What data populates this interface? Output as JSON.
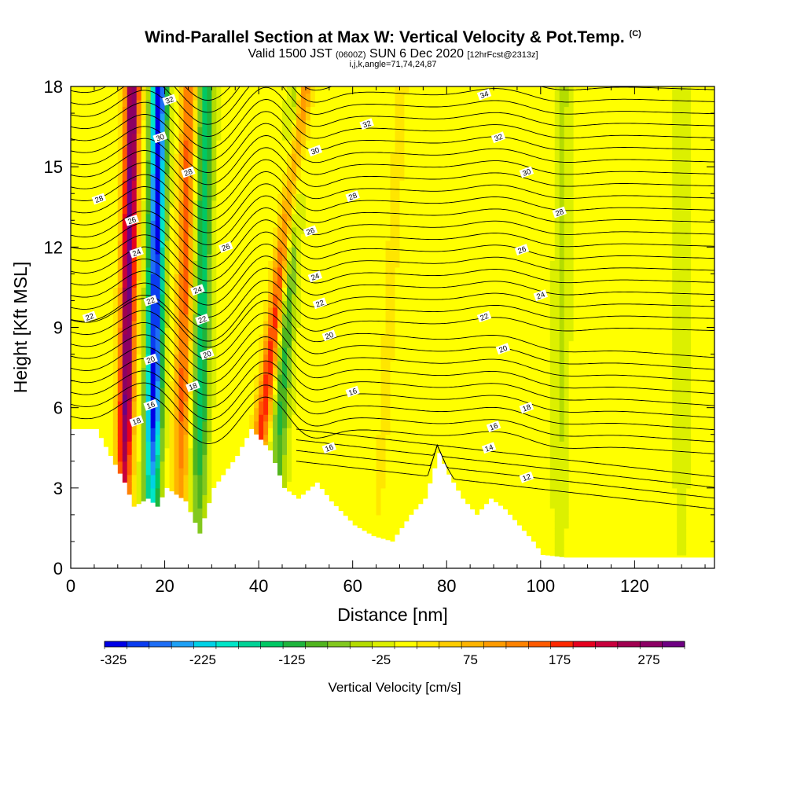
{
  "titles": {
    "main": "Wind-Parallel Section at Max W: Vertical Velocity & Pot.Temp.",
    "copyright": "(C)",
    "valid_prefix": "Valid 1500 JST",
    "valid_z": "(0600Z)",
    "valid_date": "SUN 6 Dec 2020",
    "valid_fcst": "[12hrFcst@2313z]",
    "indices": "i,j,k,angle=71,74,24,87"
  },
  "chart_data": {
    "type": "heatmap",
    "xlabel": "Distance [nm]",
    "ylabel": "Height [Kft MSL]",
    "xlim": [
      0,
      137
    ],
    "ylim": [
      0,
      18
    ],
    "x_ticks": [
      0,
      20,
      40,
      60,
      80,
      100,
      120
    ],
    "y_ticks": [
      0,
      3,
      6,
      9,
      12,
      15,
      18
    ],
    "colorbar": {
      "label": "Vertical Velocity [cm/s]",
      "min": -335,
      "max": 315,
      "step": 25,
      "tick_values": [
        -325,
        -225,
        -125,
        -25,
        75,
        175,
        275
      ],
      "tick_labels": [
        "-325",
        "-225",
        "-125",
        "-25",
        "75",
        "175",
        "275"
      ],
      "colors": [
        "#0000e6",
        "#0a3cf0",
        "#1e6ef5",
        "#1ea0f5",
        "#00d2e6",
        "#00e6c8",
        "#00d296",
        "#00c864",
        "#1eb43c",
        "#50b41e",
        "#82c81e",
        "#b4dc00",
        "#dcf000",
        "#ffff00",
        "#ffe600",
        "#ffcd00",
        "#ffb400",
        "#ff9b00",
        "#ff8200",
        "#ff5a00",
        "#ff2800",
        "#e6001e",
        "#c8003c",
        "#a00050",
        "#8c0064",
        "#6e0082"
      ]
    },
    "updrafts": [
      {
        "x_base": 11,
        "tilt_nm_per_kft": 0.12,
        "peak_cm_s": 300
      },
      {
        "x_base": 23,
        "tilt_nm_per_kft": 0.12,
        "peak_cm_s": 150
      },
      {
        "x_base": 37,
        "tilt_nm_per_kft": 0.7,
        "peak_cm_s": 190
      },
      {
        "x_base": 65,
        "tilt_nm_per_kft": 0.3,
        "peak_cm_s": 25
      }
    ],
    "downdrafts": [
      {
        "x_base": 17,
        "tilt_nm_per_kft": 0.1,
        "peak_cm_s": -320
      },
      {
        "x_base": 27,
        "tilt_nm_per_kft": 0.1,
        "peak_cm_s": -150
      },
      {
        "x_base": 43,
        "tilt_nm_per_kft": 0.3,
        "peak_cm_s": -120
      },
      {
        "x_base": 104,
        "tilt_nm_per_kft": 0.05,
        "peak_cm_s": -40
      },
      {
        "x_base": 130,
        "tilt_nm_per_kft": 0.0,
        "peak_cm_s": -30
      }
    ],
    "terrain_kft": [
      [
        0,
        5.2
      ],
      [
        5,
        5.2
      ],
      [
        8,
        4.2
      ],
      [
        11,
        3.2
      ],
      [
        13,
        2.3
      ],
      [
        16,
        2.6
      ],
      [
        18,
        2.3
      ],
      [
        20,
        3.0
      ],
      [
        24,
        2.5
      ],
      [
        27,
        1.3
      ],
      [
        30,
        3.0
      ],
      [
        35,
        4.2
      ],
      [
        38,
        5.2
      ],
      [
        42,
        4.4
      ],
      [
        45,
        3.0
      ],
      [
        48,
        2.6
      ],
      [
        52,
        3.2
      ],
      [
        55,
        2.5
      ],
      [
        60,
        1.6
      ],
      [
        64,
        1.2
      ],
      [
        68,
        1.0
      ],
      [
        72,
        2.0
      ],
      [
        75,
        2.6
      ],
      [
        78,
        4.3
      ],
      [
        80,
        3.5
      ],
      [
        83,
        2.6
      ],
      [
        86,
        2.0
      ],
      [
        89,
        2.6
      ],
      [
        92,
        2.2
      ],
      [
        95,
        1.6
      ],
      [
        98,
        1.0
      ],
      [
        100,
        0.5
      ],
      [
        105,
        0.4
      ],
      [
        110,
        0.4
      ],
      [
        137,
        0.4
      ]
    ],
    "theta_isotherms_C": [
      12,
      14,
      16,
      18,
      20,
      22,
      24,
      26,
      28,
      30,
      32,
      34
    ],
    "contour_labels": [
      {
        "text": "32",
        "x": 21,
        "y": 17.5
      },
      {
        "text": "34",
        "x": 88,
        "y": 17.7
      },
      {
        "text": "32",
        "x": 63,
        "y": 16.6
      },
      {
        "text": "32",
        "x": 91,
        "y": 16.1
      },
      {
        "text": "30",
        "x": 19,
        "y": 16.1
      },
      {
        "text": "30",
        "x": 52,
        "y": 15.6
      },
      {
        "text": "30",
        "x": 97,
        "y": 14.8
      },
      {
        "text": "28",
        "x": 25,
        "y": 14.8
      },
      {
        "text": "28",
        "x": 6,
        "y": 13.8
      },
      {
        "text": "28",
        "x": 60,
        "y": 13.9
      },
      {
        "text": "28",
        "x": 104,
        "y": 13.3
      },
      {
        "text": "26",
        "x": 13,
        "y": 13.0
      },
      {
        "text": "26",
        "x": 51,
        "y": 12.6
      },
      {
        "text": "26",
        "x": 33,
        "y": 12.0
      },
      {
        "text": "26",
        "x": 96,
        "y": 11.9
      },
      {
        "text": "24",
        "x": 14,
        "y": 11.8
      },
      {
        "text": "24",
        "x": 52,
        "y": 10.9
      },
      {
        "text": "24",
        "x": 27,
        "y": 10.4
      },
      {
        "text": "24",
        "x": 100,
        "y": 10.2
      },
      {
        "text": "22",
        "x": 17,
        "y": 10.0
      },
      {
        "text": "22",
        "x": 53,
        "y": 9.9
      },
      {
        "text": "22",
        "x": 4,
        "y": 9.4
      },
      {
        "text": "22",
        "x": 28,
        "y": 9.3
      },
      {
        "text": "22",
        "x": 88,
        "y": 9.4
      },
      {
        "text": "20",
        "x": 29,
        "y": 8.0
      },
      {
        "text": "20",
        "x": 55,
        "y": 8.7
      },
      {
        "text": "20",
        "x": 92,
        "y": 8.2
      },
      {
        "text": "20",
        "x": 17,
        "y": 7.8
      },
      {
        "text": "18",
        "x": 26,
        "y": 6.8
      },
      {
        "text": "16",
        "x": 60,
        "y": 6.6
      },
      {
        "text": "16",
        "x": 17,
        "y": 6.1
      },
      {
        "text": "18",
        "x": 97,
        "y": 6.0
      },
      {
        "text": "18",
        "x": 14,
        "y": 5.5
      },
      {
        "text": "16",
        "x": 90,
        "y": 5.3
      },
      {
        "text": "16",
        "x": 55,
        "y": 4.5
      },
      {
        "text": "14",
        "x": 89,
        "y": 4.5
      },
      {
        "text": "12",
        "x": 97,
        "y": 3.4
      }
    ]
  }
}
